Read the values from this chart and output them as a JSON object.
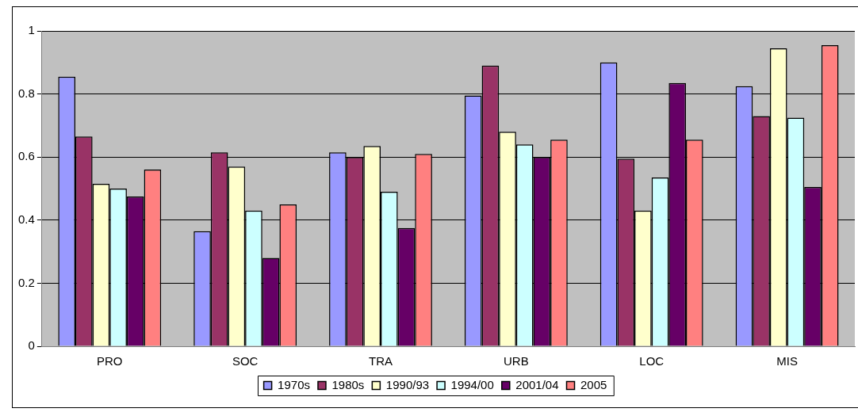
{
  "chart_data": {
    "type": "bar",
    "categories": [
      "PRO",
      "SOC",
      "TRA",
      "URB",
      "LOC",
      "MIS"
    ],
    "series": [
      {
        "name": "1970s",
        "color": "#9999ff",
        "values": [
          0.855,
          0.365,
          0.615,
          0.795,
          0.9,
          0.825
        ]
      },
      {
        "name": "1980s",
        "color": "#993366",
        "values": [
          0.665,
          0.615,
          0.6,
          0.89,
          0.595,
          0.73
        ]
      },
      {
        "name": "1990/93",
        "color": "#ffffcc",
        "values": [
          0.515,
          0.57,
          0.635,
          0.68,
          0.43,
          0.945
        ]
      },
      {
        "name": "1994/00",
        "color": "#ccffff",
        "values": [
          0.5,
          0.43,
          0.49,
          0.64,
          0.535,
          0.725
        ]
      },
      {
        "name": "2001/04",
        "color": "#660066",
        "values": [
          0.475,
          0.28,
          0.375,
          0.6,
          0.835,
          0.505
        ]
      },
      {
        "name": "2005",
        "color": "#ff8080",
        "values": [
          0.56,
          0.45,
          0.61,
          0.655,
          0.655,
          0.955
        ]
      }
    ],
    "ylim": [
      0,
      1
    ],
    "yticks": [
      0,
      0.2,
      0.4,
      0.6,
      0.8,
      1
    ],
    "grid": "y",
    "legend": "bottom"
  }
}
